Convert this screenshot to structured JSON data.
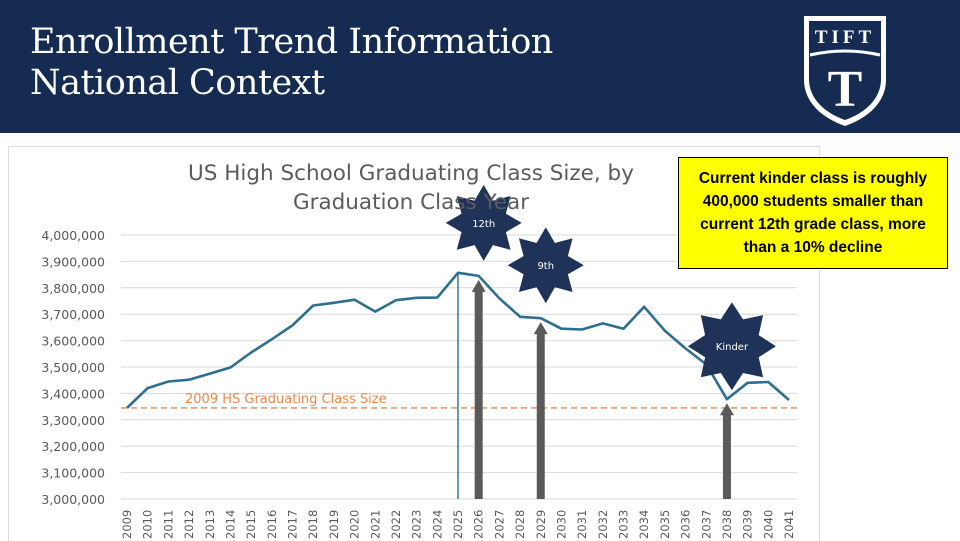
{
  "slide": {
    "title_line1": "Enrollment Trend Information",
    "title_line2": "National Context",
    "logo_text": "TIFT",
    "logo_monogram": "T"
  },
  "callout": {
    "text": "Current kinder class is roughly 400,000 students smaller than current 12th grade class, more than a 10% decline"
  },
  "colors": {
    "header": "#152b52",
    "line": "#2e6e8e",
    "baseline": "#e8884a",
    "badge": "#1f3358",
    "arrow": "#5a5a5a",
    "callout": "#ffff00"
  },
  "chart_data": {
    "type": "line",
    "title_line1": "US High School Graduating Class Size, by",
    "title_line2": "Graduation Class Year",
    "x": [
      "2009",
      "2010",
      "2011",
      "2012",
      "2013",
      "2014",
      "2015",
      "2016",
      "2017",
      "2018",
      "2019",
      "2020",
      "2021",
      "2022",
      "2023",
      "2024",
      "2025",
      "2026",
      "2027",
      "2028",
      "2029",
      "2030",
      "2031",
      "2032",
      "2033",
      "2034",
      "2035",
      "2036",
      "2037",
      "2038",
      "2039",
      "2040",
      "2041"
    ],
    "series": [
      {
        "values": [
          3345000,
          3420000,
          3445000,
          3452000,
          3475000,
          3498000,
          3555000,
          3605000,
          3658000,
          3733000,
          3743000,
          3755000,
          3710000,
          3753000,
          3762000,
          3763000,
          3857000,
          3845000,
          3760000,
          3690000,
          3685000,
          3645000,
          3642000,
          3665000,
          3645000,
          3728000,
          3637000,
          3570000,
          3510000,
          3378000,
          3440000,
          3443000,
          3375000
        ]
      }
    ],
    "ylim": [
      3000000,
      4000000
    ],
    "y_ticks": [
      {
        "value": 3000000,
        "label": "3,000,000"
      },
      {
        "value": 3100000,
        "label": "3,100,000"
      },
      {
        "value": 3200000,
        "label": "3,200,000"
      },
      {
        "value": 3300000,
        "label": "3,300,000"
      },
      {
        "value": 3400000,
        "label": "3,400,000"
      },
      {
        "value": 3500000,
        "label": "3,500,000"
      },
      {
        "value": 3600000,
        "label": "3,600,000"
      },
      {
        "value": 3700000,
        "label": "3,700,000"
      },
      {
        "value": 3800000,
        "label": "3,800,000"
      },
      {
        "value": 3900000,
        "label": "3,900,000"
      },
      {
        "value": 4000000,
        "label": "4,000,000"
      }
    ],
    "grid": true,
    "reference_line": {
      "value": 3345000,
      "label": "2009 HS Graduating Class Size"
    },
    "current_year_marker": "2025",
    "annotations": [
      {
        "label": "12th",
        "year": "2026"
      },
      {
        "label": "9th",
        "year": "2029"
      },
      {
        "label": "Kinder",
        "year": "2038"
      }
    ]
  }
}
